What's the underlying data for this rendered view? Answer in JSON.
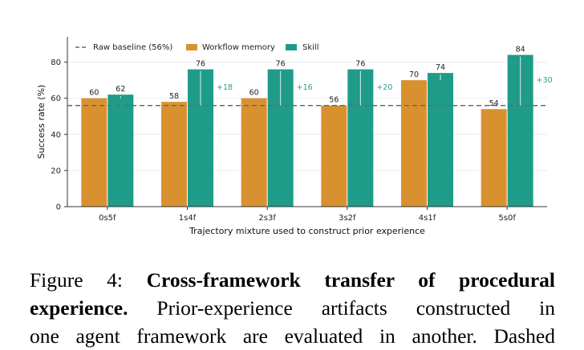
{
  "chart_data": {
    "type": "bar",
    "categories": [
      "0s5f",
      "1s4f",
      "2s3f",
      "3s2f",
      "4s1f",
      "5s0f"
    ],
    "series": [
      {
        "name": "Workflow memory",
        "values": [
          60,
          58,
          60,
          56,
          70,
          54
        ],
        "color": "#d99130"
      },
      {
        "name": "Skill",
        "values": [
          62,
          76,
          76,
          76,
          74,
          84
        ],
        "color": "#1f9b8a"
      }
    ],
    "value_labels": {
      "workflow": [
        "60",
        "58",
        "60",
        "56",
        "70",
        "54"
      ],
      "skill": [
        "62",
        "76",
        "76",
        "76",
        "74",
        "84"
      ]
    },
    "delta_labels": [
      "",
      "+18",
      "+16",
      "+20",
      "",
      "+30"
    ],
    "baseline": {
      "name": "Raw baseline (56%)",
      "value": 56,
      "color": "#666a70"
    },
    "xlabel": "Trajectory mixture used to construct prior experience",
    "ylabel": "Success rate (%)",
    "ylim": [
      0,
      94
    ],
    "yticks": [
      "0",
      "20",
      "40",
      "60",
      "80"
    ],
    "grid": "horizontal",
    "legend_position": "top-left"
  },
  "caption": {
    "label": "Figure 4:",
    "title": "Cross-framework transfer of procedural experience.",
    "title_line1": "Cross-framework transfer of procedural",
    "title_line2": "experience.",
    "text_line2": "Prior-experience artifacts constructed in",
    "text_line3": "one agent framework are evaluated in another. Dashed"
  }
}
